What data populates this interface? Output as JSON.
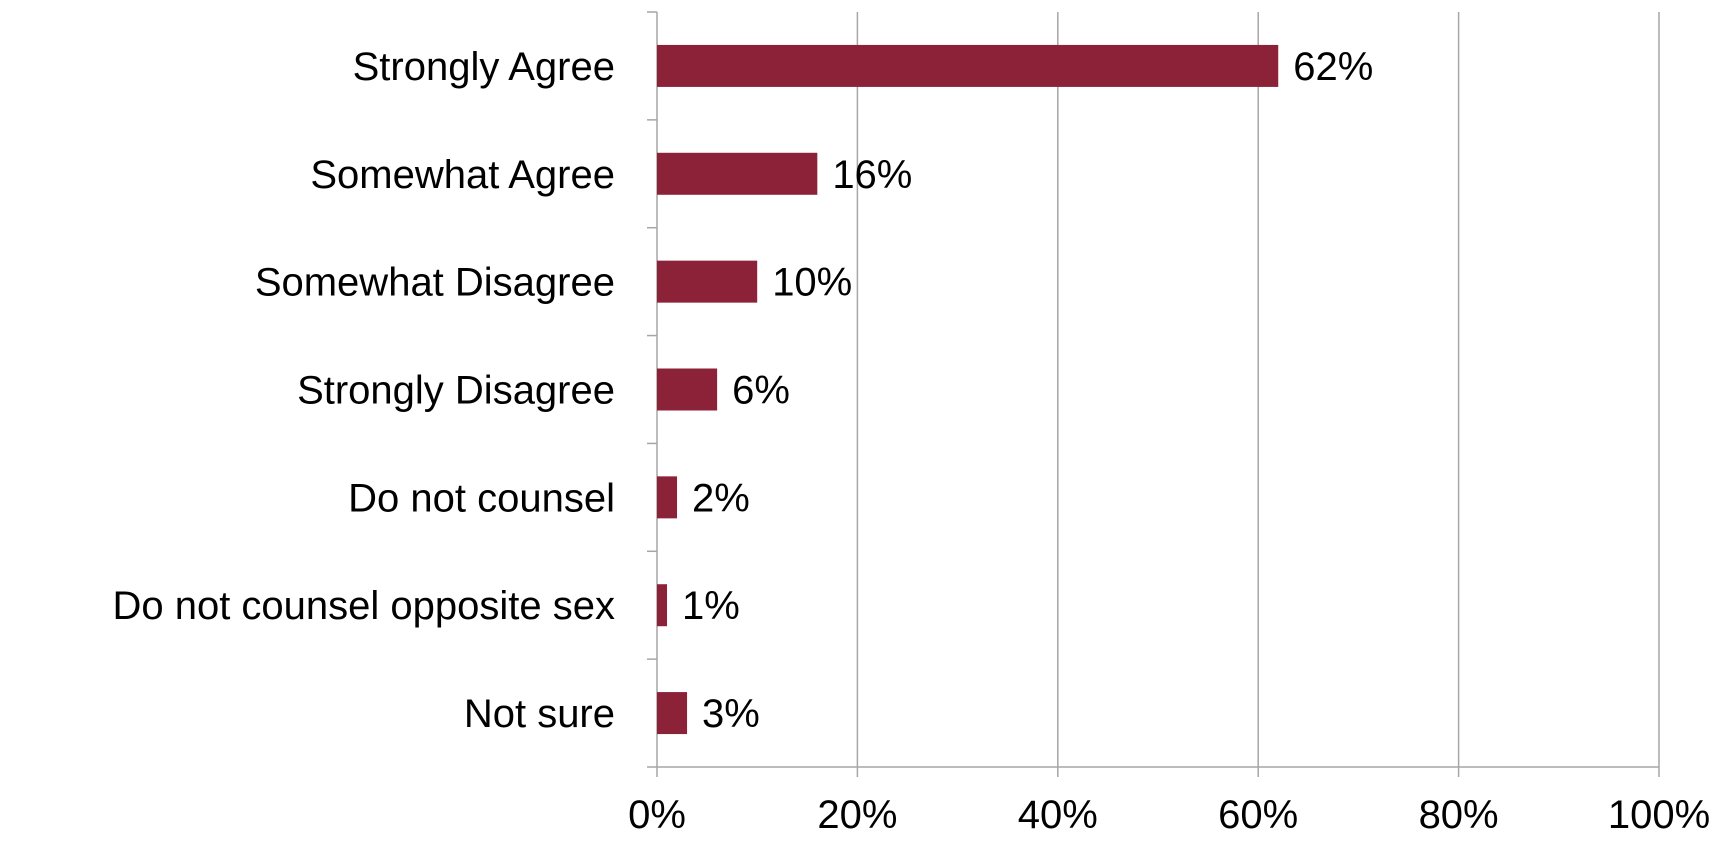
{
  "chart_data": {
    "type": "bar",
    "orientation": "horizontal",
    "title": "",
    "xlabel": "",
    "ylabel": "",
    "categories": [
      "Strongly Agree",
      "Somewhat Agree",
      "Somewhat Disagree",
      "Strongly Disagree",
      "Do not counsel",
      "Do not counsel opposite sex",
      "Not sure"
    ],
    "values": [
      62,
      16,
      10,
      6,
      2,
      1,
      3
    ],
    "value_labels": [
      "62%",
      "16%",
      "10%",
      "6%",
      "2%",
      "1%",
      "3%"
    ],
    "xlim": [
      0,
      100
    ],
    "xticks": [
      0,
      20,
      40,
      60,
      80,
      100
    ],
    "xtick_labels": [
      "0%",
      "20%",
      "40%",
      "60%",
      "80%",
      "100%"
    ],
    "grid": "vertical",
    "legend": "none",
    "colors": {
      "bar": "#8B2238",
      "grid": "#A6A6A6",
      "axis": "#A6A6A6",
      "text": "#000000"
    }
  }
}
